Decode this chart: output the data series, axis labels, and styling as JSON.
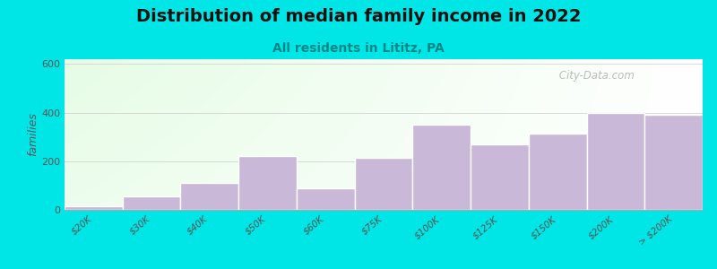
{
  "title": "Distribution of median family income in 2022",
  "subtitle": "All residents in Lititz, PA",
  "ylabel": "families",
  "categories": [
    "$20K",
    "$30K",
    "$40K",
    "$50K",
    "$60K",
    "$75K",
    "$100K",
    "$125K",
    "$150K",
    "$200K",
    "> $200K"
  ],
  "values": [
    15,
    55,
    110,
    220,
    90,
    215,
    350,
    270,
    315,
    400,
    390
  ],
  "bar_color": "#c9b8d8",
  "bar_edge_color": "#ffffff",
  "background_outer": "#00e5e5",
  "background_chart": "#ffffff",
  "ylim": [
    0,
    620
  ],
  "yticks": [
    0,
    200,
    400,
    600
  ],
  "title_fontsize": 14,
  "subtitle_fontsize": 10,
  "ylabel_fontsize": 9,
  "watermark": " City-Data.com",
  "grid_color": "#cccccc"
}
